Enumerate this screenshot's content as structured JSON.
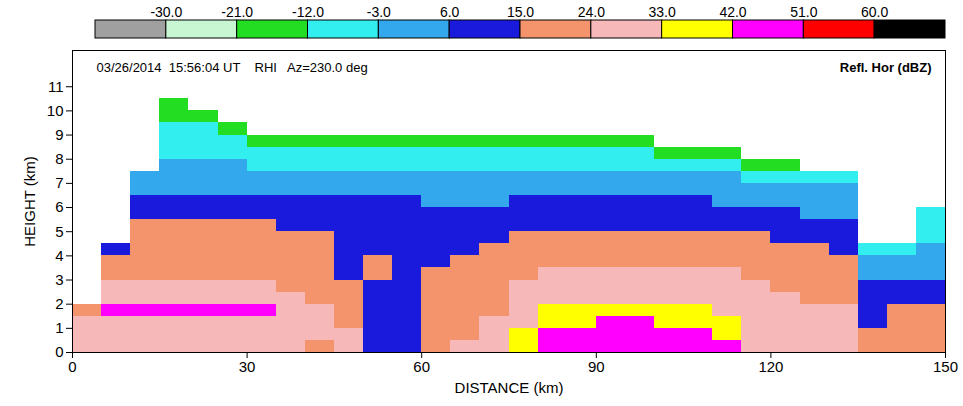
{
  "chart_data": {
    "type": "heatmap",
    "annotations": [
      "03/26/2014  15:56:04 UT    RHI   Az=230.0 deg"
    ],
    "x_label": "DISTANCE (km)",
    "y_label": "HEIGHT (km)",
    "xlim": [
      0,
      150
    ],
    "ylim": [
      0,
      12.5
    ],
    "xticks": [
      0,
      30,
      60,
      90,
      120,
      150
    ],
    "yticks": [
      0,
      1,
      2,
      3,
      4,
      5,
      6,
      7,
      8,
      9,
      10,
      11
    ],
    "x_edges": [
      0,
      5,
      10,
      15,
      20,
      25,
      30,
      35,
      40,
      45,
      50,
      55,
      60,
      65,
      70,
      75,
      80,
      85,
      90,
      95,
      100,
      105,
      110,
      115,
      120,
      125,
      130,
      135,
      140,
      145,
      150
    ],
    "y_edges": [
      0,
      0.5,
      1,
      1.5,
      2,
      2.5,
      3,
      3.5,
      4,
      4.5,
      5,
      5.5,
      6,
      6.5,
      7,
      7.5,
      8,
      8.5,
      9,
      9.5,
      10,
      10.5,
      11
    ],
    "cells": [
      [
        28,
        28,
        28,
        20,
        null,
        null,
        null,
        null,
        null,
        null,
        null,
        null,
        null,
        null,
        null,
        null,
        null,
        null,
        null,
        null,
        null,
        null
      ],
      [
        28,
        28,
        28,
        45,
        28,
        28,
        20,
        20,
        10,
        null,
        null,
        null,
        null,
        null,
        null,
        null,
        null,
        null,
        null,
        null,
        null,
        null
      ],
      [
        28,
        28,
        28,
        45,
        28,
        28,
        20,
        20,
        20,
        20,
        20,
        10,
        10,
        1,
        1,
        null,
        null,
        null,
        null,
        null,
        null,
        null
      ],
      [
        28,
        28,
        28,
        45,
        28,
        28,
        20,
        20,
        20,
        20,
        20,
        10,
        10,
        1,
        1,
        1,
        -8,
        -8,
        -8,
        -16,
        -16,
        null
      ],
      [
        28,
        28,
        28,
        45,
        28,
        28,
        20,
        20,
        20,
        20,
        20,
        10,
        10,
        1,
        1,
        1,
        -8,
        -8,
        -8,
        -16,
        null,
        null
      ],
      [
        28,
        28,
        28,
        45,
        28,
        28,
        20,
        20,
        20,
        20,
        20,
        10,
        10,
        1,
        1,
        1,
        -8,
        -8,
        -16,
        null,
        null,
        null
      ],
      [
        28,
        28,
        28,
        45,
        28,
        28,
        20,
        20,
        20,
        20,
        20,
        10,
        10,
        1,
        1,
        -8,
        -8,
        -16,
        null,
        null,
        null,
        null
      ],
      [
        28,
        28,
        28,
        28,
        28,
        20,
        20,
        20,
        20,
        20,
        10,
        10,
        10,
        1,
        1,
        -8,
        -8,
        -16,
        null,
        null,
        null,
        null
      ],
      [
        20,
        28,
        28,
        28,
        20,
        20,
        20,
        20,
        20,
        20,
        10,
        10,
        10,
        1,
        1,
        -8,
        -8,
        -16,
        null,
        null,
        null,
        null
      ],
      [
        28,
        28,
        20,
        20,
        20,
        20,
        10,
        10,
        10,
        10,
        10,
        10,
        10,
        1,
        1,
        -8,
        -8,
        -16,
        null,
        null,
        null,
        null
      ],
      [
        10,
        10,
        10,
        10,
        10,
        10,
        20,
        20,
        10,
        10,
        10,
        10,
        10,
        1,
        1,
        -8,
        -8,
        -16,
        null,
        null,
        null,
        null
      ],
      [
        10,
        10,
        10,
        10,
        10,
        10,
        10,
        10,
        10,
        10,
        10,
        10,
        10,
        1,
        1,
        -8,
        -8,
        -16,
        null,
        null,
        null,
        null
      ],
      [
        20,
        20,
        20,
        20,
        20,
        20,
        20,
        10,
        10,
        10,
        10,
        10,
        1,
        1,
        1,
        -8,
        -8,
        -16,
        null,
        null,
        null,
        null
      ],
      [
        28,
        20,
        20,
        20,
        20,
        20,
        20,
        20,
        10,
        10,
        10,
        10,
        1,
        1,
        1,
        -8,
        -8,
        -16,
        null,
        null,
        null,
        null
      ],
      [
        28,
        28,
        28,
        20,
        20,
        20,
        20,
        20,
        20,
        10,
        10,
        10,
        1,
        1,
        1,
        -8,
        -8,
        -16,
        null,
        null,
        null,
        null
      ],
      [
        37,
        37,
        28,
        28,
        28,
        28,
        20,
        20,
        20,
        20,
        10,
        10,
        10,
        1,
        1,
        -8,
        -8,
        -16,
        null,
        null,
        null,
        null
      ],
      [
        45,
        45,
        37,
        37,
        28,
        28,
        28,
        20,
        20,
        20,
        10,
        10,
        10,
        1,
        1,
        -8,
        -8,
        -16,
        null,
        null,
        null,
        null
      ],
      [
        45,
        45,
        37,
        37,
        28,
        28,
        28,
        20,
        20,
        20,
        10,
        10,
        10,
        1,
        1,
        -8,
        -8,
        -16,
        null,
        null,
        null,
        null
      ],
      [
        45,
        45,
        45,
        37,
        28,
        28,
        28,
        20,
        20,
        20,
        10,
        10,
        10,
        1,
        1,
        -8,
        -8,
        -16,
        null,
        null,
        null,
        null
      ],
      [
        45,
        45,
        45,
        37,
        28,
        28,
        28,
        20,
        20,
        20,
        10,
        10,
        10,
        1,
        1,
        -8,
        -8,
        -16,
        null,
        null,
        null,
        null
      ],
      [
        45,
        45,
        37,
        37,
        28,
        28,
        28,
        20,
        20,
        20,
        10,
        10,
        10,
        1,
        1,
        -8,
        -16,
        null,
        null,
        null,
        null,
        null
      ],
      [
        45,
        45,
        37,
        37,
        28,
        28,
        28,
        20,
        20,
        20,
        10,
        10,
        10,
        1,
        1,
        -8,
        -16,
        null,
        null,
        null,
        null,
        null
      ],
      [
        45,
        37,
        37,
        28,
        28,
        28,
        28,
        20,
        20,
        20,
        10,
        10,
        1,
        1,
        1,
        -8,
        -16,
        null,
        null,
        null,
        null,
        null
      ],
      [
        28,
        28,
        28,
        28,
        28,
        28,
        20,
        20,
        20,
        20,
        10,
        10,
        1,
        1,
        -8,
        -16,
        null,
        null,
        null,
        null,
        null,
        null
      ],
      [
        28,
        28,
        28,
        28,
        28,
        20,
        20,
        20,
        20,
        10,
        10,
        10,
        1,
        1,
        -8,
        -16,
        null,
        null,
        null,
        null,
        null,
        null
      ],
      [
        28,
        28,
        28,
        28,
        20,
        20,
        20,
        20,
        20,
        10,
        10,
        1,
        1,
        1,
        -8,
        null,
        null,
        null,
        null,
        null,
        null,
        null
      ],
      [
        28,
        28,
        28,
        28,
        20,
        20,
        20,
        20,
        10,
        10,
        10,
        1,
        1,
        1,
        -8,
        null,
        null,
        null,
        null,
        null,
        null,
        null
      ],
      [
        20,
        20,
        10,
        10,
        10,
        10,
        1,
        1,
        -8,
        null,
        null,
        null,
        null,
        null,
        null,
        null,
        null,
        null,
        null,
        null,
        null,
        null
      ],
      [
        20,
        20,
        20,
        20,
        10,
        10,
        1,
        1,
        -8,
        null,
        null,
        null,
        null,
        null,
        null,
        null,
        null,
        null,
        null,
        null,
        null,
        null
      ],
      [
        20,
        20,
        20,
        20,
        10,
        10,
        1,
        1,
        1,
        -8,
        -8,
        -8,
        null,
        null,
        null,
        null,
        null,
        null,
        null,
        null,
        null,
        null
      ]
    ],
    "colorbar": {
      "label": "Refl. Hor (dBZ)",
      "colors": [
        "#a0a0a0",
        "#c8f5d2",
        "#22dd22",
        "#33eeee",
        "#33a8ec",
        "#1a1adc",
        "#f4946c",
        "#f6b8b8",
        "#ffff00",
        "#ff00ff",
        "#ff0000",
        "#000000"
      ],
      "ticks": [
        {
          "value": -30,
          "label": "-30.0"
        },
        {
          "value": -21,
          "label": "-21.0"
        },
        {
          "value": -12,
          "label": "-12.0"
        },
        {
          "value": -3,
          "label": "-3.0"
        },
        {
          "value": 6,
          "label": "6.0"
        },
        {
          "value": 15,
          "label": "15.0"
        },
        {
          "value": 24,
          "label": "24.0"
        },
        {
          "value": 33,
          "label": "33.0"
        },
        {
          "value": 42,
          "label": "42.0"
        },
        {
          "value": 51,
          "label": "51.0"
        },
        {
          "value": 60,
          "label": "60.0"
        }
      ]
    }
  }
}
